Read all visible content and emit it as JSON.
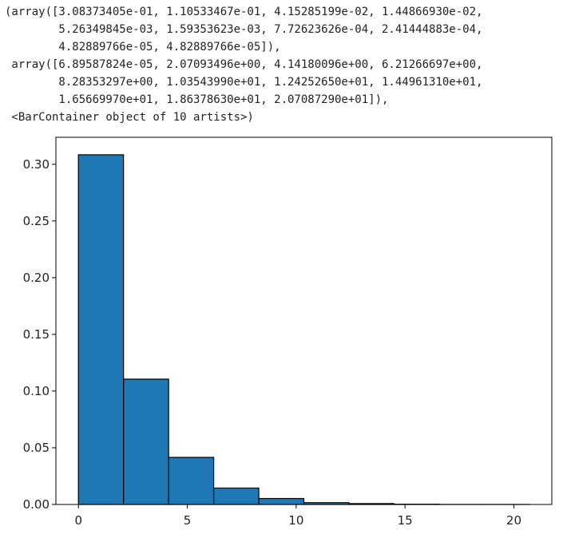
{
  "output": {
    "lines": [
      "(array([3.08373405e-01, 1.10533467e-01, 4.15285199e-02, 1.44866930e-02,",
      "        5.26349845e-03, 1.59353623e-03, 7.72623626e-04, 2.41444883e-04,",
      "        4.82889766e-05, 4.82889766e-05]),",
      " array([6.89587824e-05, 2.07093496e+00, 4.14180096e+00, 6.21266697e+00,",
      "        8.28353297e+00, 1.03543990e+01, 1.24252650e+01, 1.44961310e+01,",
      "        1.65669970e+01, 1.86378630e+01, 2.07087290e+01]),",
      " <BarContainer object of 10 artists>)"
    ]
  },
  "chart_data": {
    "type": "bar",
    "bin_edges": [
      6.89587824e-05,
      2.07093496,
      4.14180096,
      6.21266697,
      8.28353297,
      10.354399,
      12.425265,
      14.496131,
      16.566997,
      18.637863,
      20.708729
    ],
    "values": [
      0.308373405,
      0.110533467,
      0.0415285199,
      0.014486693,
      0.00526349845,
      0.00159353623,
      0.000772623626,
      0.000241444883,
      4.82889766e-05,
      4.82889766e-05
    ],
    "bar_color": "#1f77b4",
    "edge_color": "#000000",
    "xticks": [
      0,
      5,
      10,
      15,
      20
    ],
    "xtick_labels": [
      "0",
      "5",
      "10",
      "15",
      "20"
    ],
    "yticks": [
      0.0,
      0.05,
      0.1,
      0.15,
      0.2,
      0.25,
      0.3
    ],
    "ytick_labels": [
      "0.00",
      "0.05",
      "0.10",
      "0.15",
      "0.20",
      "0.25",
      "0.30"
    ],
    "xlim": [
      -1.035,
      21.744
    ],
    "ylim": [
      0,
      0.3238
    ],
    "grid": false
  }
}
